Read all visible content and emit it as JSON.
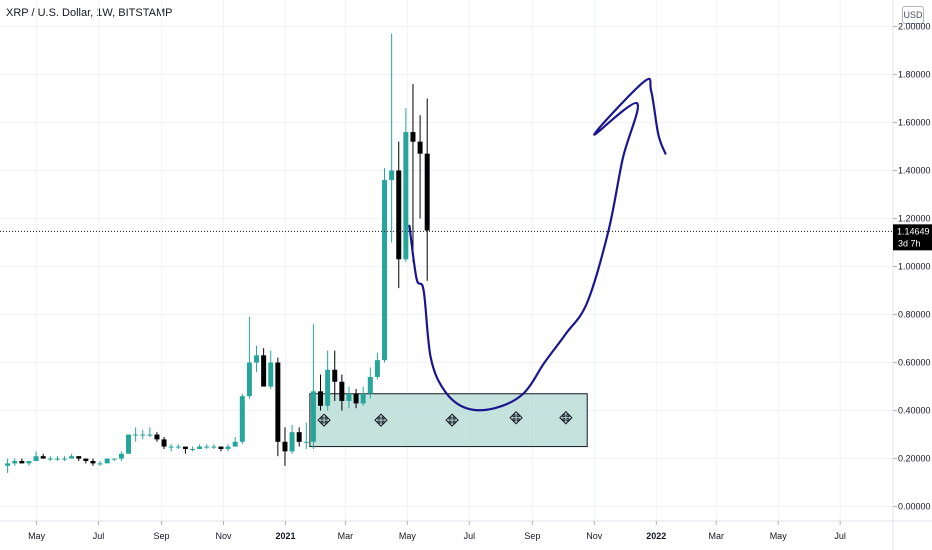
{
  "header": {
    "title": "XRP / U.S. Dollar, 1W, BITSTAMP",
    "currency_button": "USD"
  },
  "price_badge": {
    "price": "1.14649",
    "countdown": "3d 7h"
  },
  "colors": {
    "bull": "#26a69a",
    "bear": "#000000",
    "zone_fill": "#b2d8d1",
    "annotation": "#1a1690",
    "badge": "#000000"
  },
  "annotations": {
    "support_zone": {
      "type": "rectangle",
      "x_from": "2021-01-25",
      "x_to": "2021-10-25",
      "y_from": 0.25,
      "y_to": 0.47
    },
    "marker_icon": "four-way-arrow-icon",
    "markers": [
      {
        "x": "2021-02-08",
        "y": 0.36
      },
      {
        "x": "2021-04-05",
        "y": 0.36
      },
      {
        "x": "2021-06-14",
        "y": 0.36
      },
      {
        "x": "2021-08-16",
        "y": 0.37
      },
      {
        "x": "2021-10-04",
        "y": 0.37
      }
    ],
    "projection": {
      "type": "freehand",
      "points": [
        [
          "2021-05-03",
          1.17
        ],
        [
          "2021-05-10",
          0.95
        ],
        [
          "2021-05-17",
          0.9
        ],
        [
          "2021-05-24",
          0.62
        ],
        [
          "2021-06-07",
          0.48
        ],
        [
          "2021-06-28",
          0.41
        ],
        [
          "2021-07-26",
          0.41
        ],
        [
          "2021-08-23",
          0.47
        ],
        [
          "2021-09-13",
          0.6
        ],
        [
          "2021-10-04",
          0.72
        ],
        [
          "2021-10-25",
          0.85
        ],
        [
          "2021-11-15",
          1.15
        ],
        [
          "2021-11-29",
          1.45
        ],
        [
          "2021-12-13",
          1.68
        ],
        [
          "2021-11-01",
          1.55
        ],
        [
          "2021-12-20",
          1.77
        ],
        [
          "2021-12-27",
          1.73
        ],
        [
          "2022-01-03",
          1.55
        ],
        [
          "2022-01-10",
          1.47
        ]
      ]
    }
  },
  "chart_data": {
    "type": "candlestick",
    "title": "XRP / U.S. Dollar, 1W, BITSTAMP",
    "yaxis_side": "right",
    "ylim": [
      -0.06,
      2.11
    ],
    "yticks": [
      "0.00000",
      "0.20000",
      "0.40000",
      "0.60000",
      "0.80000",
      "1.00000",
      "1.20000",
      "1.40000",
      "1.60000",
      "1.80000",
      "2.00000"
    ],
    "xlim": [
      "2020-03-26",
      "2022-08-22"
    ],
    "xticks": [
      {
        "date": "2020-05-01",
        "label": "May"
      },
      {
        "date": "2020-07-01",
        "label": "Jul"
      },
      {
        "date": "2020-09-01",
        "label": "Sep"
      },
      {
        "date": "2020-11-01",
        "label": "Nov"
      },
      {
        "date": "2021-01-01",
        "label": "2021"
      },
      {
        "date": "2021-03-01",
        "label": "Mar"
      },
      {
        "date": "2021-05-01",
        "label": "May"
      },
      {
        "date": "2021-07-01",
        "label": "Jul"
      },
      {
        "date": "2021-09-01",
        "label": "Sep"
      },
      {
        "date": "2021-11-01",
        "label": "Nov"
      },
      {
        "date": "2022-01-01",
        "label": "2022"
      },
      {
        "date": "2022-03-01",
        "label": "Mar"
      },
      {
        "date": "2022-05-01",
        "label": "May"
      },
      {
        "date": "2022-07-01",
        "label": "Jul"
      }
    ],
    "last_price": 1.14649,
    "columns": [
      "date",
      "open",
      "high",
      "low",
      "close"
    ],
    "candles": [
      [
        "2020-03-30",
        0.17,
        0.2,
        0.14,
        0.18
      ],
      [
        "2020-04-06",
        0.18,
        0.2,
        0.17,
        0.19
      ],
      [
        "2020-04-13",
        0.19,
        0.2,
        0.18,
        0.18
      ],
      [
        "2020-04-20",
        0.18,
        0.19,
        0.17,
        0.19
      ],
      [
        "2020-04-27",
        0.19,
        0.23,
        0.19,
        0.21
      ],
      [
        "2020-05-04",
        0.21,
        0.22,
        0.2,
        0.2
      ],
      [
        "2020-05-11",
        0.2,
        0.21,
        0.19,
        0.2
      ],
      [
        "2020-05-18",
        0.2,
        0.21,
        0.19,
        0.2
      ],
      [
        "2020-05-25",
        0.2,
        0.21,
        0.19,
        0.2
      ],
      [
        "2020-06-01",
        0.2,
        0.22,
        0.2,
        0.21
      ],
      [
        "2020-06-08",
        0.21,
        0.21,
        0.19,
        0.2
      ],
      [
        "2020-06-15",
        0.2,
        0.2,
        0.18,
        0.19
      ],
      [
        "2020-06-22",
        0.19,
        0.2,
        0.17,
        0.18
      ],
      [
        "2020-06-29",
        0.18,
        0.19,
        0.17,
        0.18
      ],
      [
        "2020-07-06",
        0.18,
        0.2,
        0.18,
        0.2
      ],
      [
        "2020-07-13",
        0.2,
        0.2,
        0.19,
        0.2
      ],
      [
        "2020-07-20",
        0.2,
        0.23,
        0.19,
        0.22
      ],
      [
        "2020-07-27",
        0.22,
        0.3,
        0.22,
        0.3
      ],
      [
        "2020-08-03",
        0.3,
        0.33,
        0.27,
        0.3
      ],
      [
        "2020-08-10",
        0.3,
        0.32,
        0.28,
        0.3
      ],
      [
        "2020-08-17",
        0.3,
        0.33,
        0.29,
        0.3
      ],
      [
        "2020-08-24",
        0.3,
        0.31,
        0.27,
        0.28
      ],
      [
        "2020-08-31",
        0.28,
        0.29,
        0.24,
        0.25
      ],
      [
        "2020-09-07",
        0.25,
        0.26,
        0.23,
        0.25
      ],
      [
        "2020-09-14",
        0.25,
        0.26,
        0.24,
        0.25
      ],
      [
        "2020-09-21",
        0.25,
        0.25,
        0.22,
        0.24
      ],
      [
        "2020-09-28",
        0.24,
        0.25,
        0.23,
        0.24
      ],
      [
        "2020-10-05",
        0.24,
        0.26,
        0.24,
        0.25
      ],
      [
        "2020-10-12",
        0.25,
        0.26,
        0.24,
        0.25
      ],
      [
        "2020-10-19",
        0.25,
        0.26,
        0.24,
        0.25
      ],
      [
        "2020-10-26",
        0.25,
        0.25,
        0.23,
        0.24
      ],
      [
        "2020-11-02",
        0.24,
        0.26,
        0.23,
        0.25
      ],
      [
        "2020-11-09",
        0.25,
        0.29,
        0.25,
        0.27
      ],
      [
        "2020-11-16",
        0.27,
        0.47,
        0.26,
        0.46
      ],
      [
        "2020-11-23",
        0.46,
        0.79,
        0.45,
        0.6
      ],
      [
        "2020-11-30",
        0.6,
        0.67,
        0.56,
        0.63
      ],
      [
        "2020-12-07",
        0.63,
        0.66,
        0.5,
        0.5
      ],
      [
        "2020-12-14",
        0.5,
        0.65,
        0.49,
        0.6
      ],
      [
        "2020-12-21",
        0.6,
        0.62,
        0.21,
        0.27
      ],
      [
        "2020-12-28",
        0.27,
        0.33,
        0.17,
        0.23
      ],
      [
        "2021-01-04",
        0.23,
        0.34,
        0.22,
        0.31
      ],
      [
        "2021-01-11",
        0.31,
        0.33,
        0.25,
        0.27
      ],
      [
        "2021-01-18",
        0.27,
        0.35,
        0.24,
        0.27
      ],
      [
        "2021-01-25",
        0.27,
        0.76,
        0.24,
        0.48
      ],
      [
        "2021-02-01",
        0.48,
        0.55,
        0.4,
        0.42
      ],
      [
        "2021-02-08",
        0.42,
        0.65,
        0.4,
        0.57
      ],
      [
        "2021-02-15",
        0.57,
        0.65,
        0.44,
        0.52
      ],
      [
        "2021-02-22",
        0.52,
        0.55,
        0.4,
        0.44
      ],
      [
        "2021-03-01",
        0.44,
        0.5,
        0.41,
        0.47
      ],
      [
        "2021-03-08",
        0.47,
        0.49,
        0.41,
        0.43
      ],
      [
        "2021-03-15",
        0.43,
        0.5,
        0.42,
        0.47
      ],
      [
        "2021-03-22",
        0.47,
        0.58,
        0.45,
        0.54
      ],
      [
        "2021-03-29",
        0.54,
        0.64,
        0.53,
        0.61
      ],
      [
        "2021-04-05",
        0.61,
        1.41,
        0.6,
        1.36
      ],
      [
        "2021-04-12",
        1.36,
        1.97,
        1.1,
        1.4
      ],
      [
        "2021-04-19",
        1.4,
        1.52,
        0.91,
        1.03
      ],
      [
        "2021-04-26",
        1.03,
        1.66,
        1.02,
        1.56
      ],
      [
        "2021-05-03",
        1.56,
        1.76,
        1.02,
        1.52
      ],
      [
        "2021-05-10",
        1.52,
        1.63,
        1.2,
        1.47
      ],
      [
        "2021-05-17",
        1.47,
        1.7,
        0.94,
        1.15
      ]
    ]
  }
}
